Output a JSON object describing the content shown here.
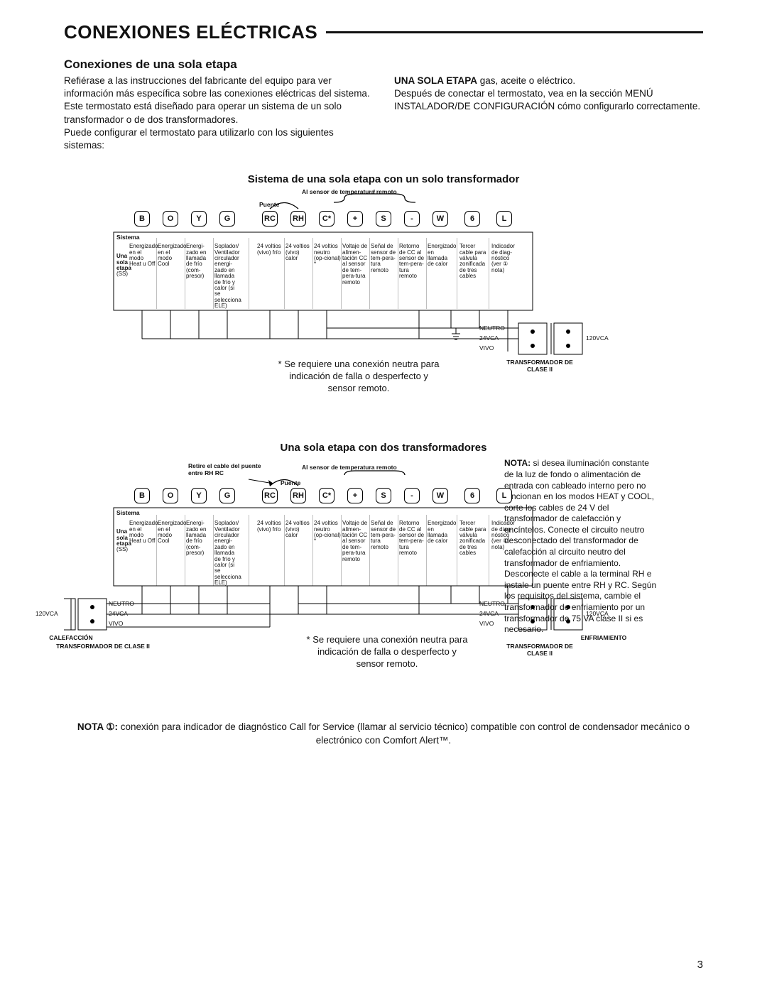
{
  "page": {
    "title": "CONEXIONES ELÉCTRICAS",
    "subtitle": "Conexiones de una sola etapa",
    "page_number": "3"
  },
  "intro": {
    "col1_p1": "Refiérase a las instrucciones del fabricante del equipo para ver información más específica sobre las conexiones eléctricas del sistema.",
    "col1_p2": "Este termostato está diseñado para operar un sistema de un solo transformador o de dos transformadores.",
    "col1_p3": "Puede configurar el termostato para utilizarlo con los siguientes sistemas:",
    "col2_bold": "UNA SOLA ETAPA",
    "col2_rest": " gas, aceite o eléctrico.",
    "col2_p2": "Después de conectar el termostato, vea en la sección MENÚ INSTALADOR/DE CONFIGURACIÓN cómo configurarlo correctamente."
  },
  "diagram1": {
    "title": "Sistema de una sola etapa con un solo transformador",
    "sensor_label": "Al sensor de temperatura remoto",
    "puente": "Puente",
    "sistema": "Sistema",
    "row_head1": "Una",
    "row_head2": "sola",
    "row_head3": "etapa",
    "row_head4": "(SS)",
    "neutral_note": "* Se requiere una conexión neutra para indicación de falla o desperfecto y sensor remoto.",
    "transformer": "TRANSFORMADOR DE CLASE II",
    "neutro": "NEUTRO",
    "v24": "24VCA",
    "vivo": "VIVO",
    "v120": "120VCA"
  },
  "diagram2": {
    "title": "Una sola etapa con dos transformadores",
    "retire": "Retire el cable del puente entre RH RC",
    "sensor_label": "Al sensor de temperatura remoto",
    "puente": "Puente",
    "sistema": "Sistema",
    "neutral_note": "* Se requiere una conexión neutra para indicación de falla o desperfecto y sensor remoto.",
    "calefaccion": "CALEFACCIÓN",
    "enfriamiento": "ENFRIAMIENTO",
    "transformer": "TRANSFORMADOR DE CLASE II",
    "side_note_bold": "NOTA:",
    "side_note": " si desea iluminación constante de la luz de fondo o alimentación de entrada con cableado interno pero no funcionan en los modos HEAT y COOL, corte los cables de 24 V del transformador de calefacción y encíntelos. Conecte el circuito neutro desconectado del transformador de calefacción al circuito neutro del transformador de enfriamiento. Desconecte el cable a la terminal RH e instale un puente entre RH y RC. Según los requisitos del sistema, cambie el transformador de enfriamiento por un transformador de 75 VA clase II si es necesario."
  },
  "terminals": {
    "labels": [
      "B",
      "O",
      "Y",
      "G",
      "RC",
      "RH",
      "C*",
      "+",
      "S",
      "-",
      "W",
      "6",
      "L"
    ],
    "descs": [
      "Energizado en el modo Heat u Off",
      "Energizado en el modo Cool",
      "Energi-zado en llamada de frío (com-presor)",
      "Soplador/ Ventilador circulador energi-zado en llamada de frío y calor (si se selecciona ELE)",
      "24 voltios (vivo) frío",
      "24 voltios (vivo) calor",
      "24 voltios neutro (op-cional) *",
      "Voltaje de alimen-tación CC al sensor de tem-pera-tura remoto",
      "Señal de sensor de tem-pera-tura remoto",
      "Retorno de CC al sensor de tem-pera-tura remoto",
      "Energizado en llamada de calor",
      "Tercer cable para válvula zonificada de tres cables",
      "Indicador de diag-nóstico (ver ① nota)"
    ]
  },
  "footer_note": {
    "bold": "NOTA ①:",
    "text": " conexión para indicador de diagnóstico Call for Service (llamar al servicio técnico) compatible con control de condensador mecánico o electrónico con Comfort Alert™."
  }
}
